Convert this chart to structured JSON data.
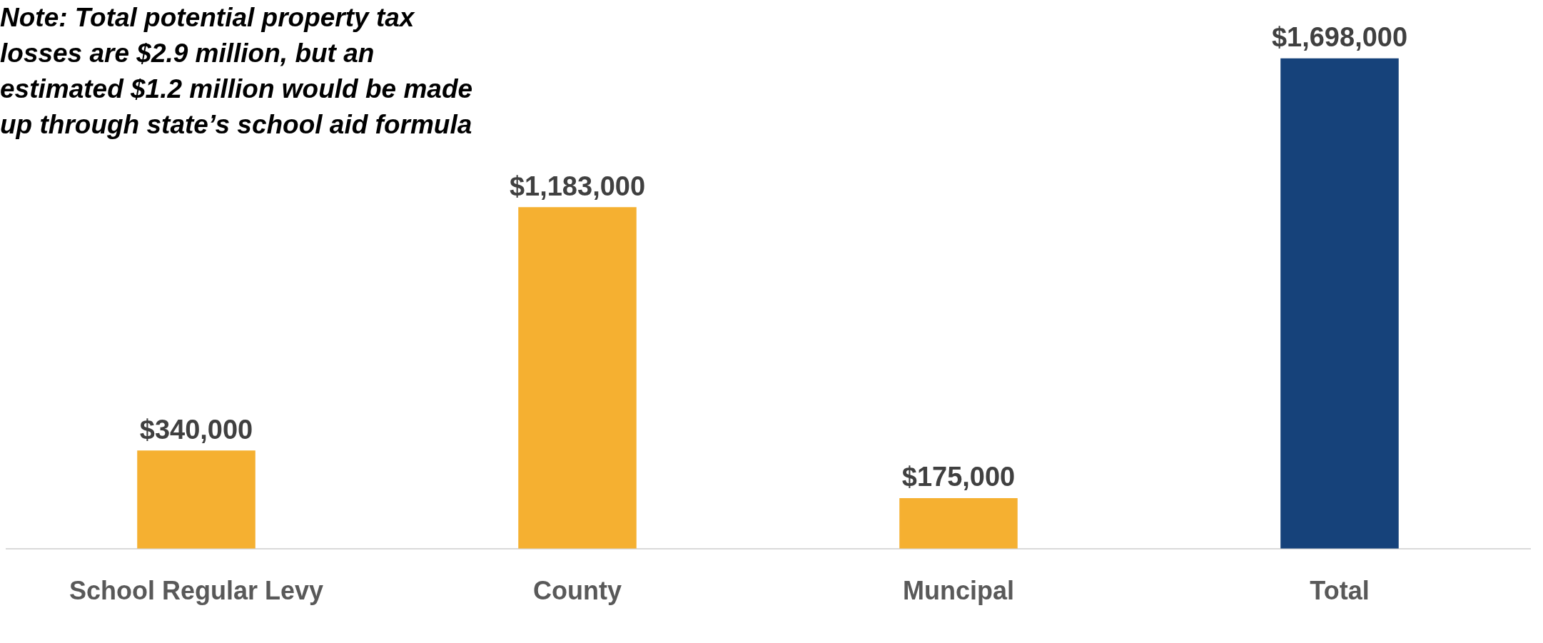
{
  "chart_data": {
    "type": "bar",
    "categories": [
      "School Regular Levy",
      "County",
      "Muncipal",
      "Total"
    ],
    "values": [
      340000,
      1183000,
      175000,
      1698000
    ],
    "colors": [
      "#f5b031",
      "#f5b031",
      "#f5b031",
      "#16427a"
    ],
    "value_labels": [
      "$340,000",
      "$1,183,000",
      "$175,000",
      "$1,698,000"
    ],
    "grid": false,
    "legend": false,
    "annotations": [
      "Note: Total potential property tax losses are $2.9 million, but an estimated $1.2 million would be made up through state’s school aid formula"
    ]
  }
}
